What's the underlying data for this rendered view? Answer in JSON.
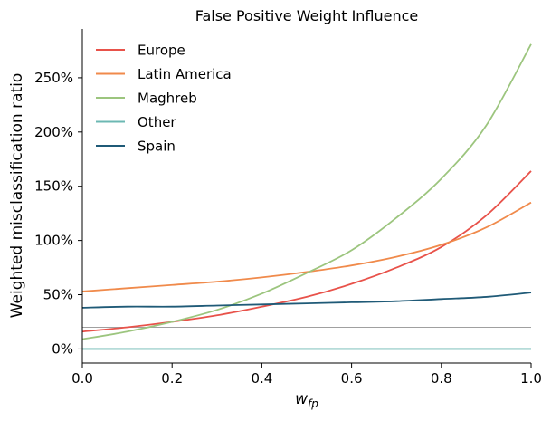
{
  "chart_data": {
    "type": "line",
    "title": "False Positive Weight Influence",
    "xlabel_main": "w",
    "xlabel_sub": "fp",
    "ylabel": "Weighted misclassification ratio",
    "xlim": [
      0,
      1
    ],
    "ylim": [
      -0.13,
      2.95
    ],
    "x_ticks": [
      0.0,
      0.2,
      0.4,
      0.6,
      0.8,
      1.0
    ],
    "x_tick_labels": [
      "0.0",
      "0.2",
      "0.4",
      "0.6",
      "0.8",
      "1.0"
    ],
    "y_ticks": [
      0,
      0.5,
      1.0,
      1.5,
      2.0,
      2.5
    ],
    "y_tick_labels": [
      "0%",
      "50%",
      "100%",
      "150%",
      "200%",
      "250%"
    ],
    "grid": false,
    "legend_position": "upper-left",
    "reference_line": {
      "y": 0.2,
      "color": "#a0a0a0"
    },
    "x": [
      0.0,
      0.1,
      0.2,
      0.3,
      0.4,
      0.5,
      0.6,
      0.7,
      0.8,
      0.9,
      1.0
    ],
    "series": [
      {
        "name": "Europe",
        "color": "#e8524a",
        "values": [
          0.16,
          0.2,
          0.25,
          0.31,
          0.39,
          0.48,
          0.6,
          0.75,
          0.94,
          1.23,
          1.64
        ]
      },
      {
        "name": "Latin America",
        "color": "#f08a4b",
        "values": [
          0.53,
          0.56,
          0.59,
          0.62,
          0.66,
          0.71,
          0.77,
          0.85,
          0.96,
          1.12,
          1.35
        ]
      },
      {
        "name": "Maghreb",
        "color": "#9cc57e",
        "values": [
          0.09,
          0.16,
          0.25,
          0.36,
          0.51,
          0.7,
          0.91,
          1.21,
          1.57,
          2.06,
          2.81
        ]
      },
      {
        "name": "Other",
        "color": "#6cb8b3",
        "values": [
          0.0,
          0.0,
          0.0,
          0.0,
          0.0,
          0.0,
          0.0,
          0.0,
          0.0,
          0.0,
          0.0
        ]
      },
      {
        "name": "Spain",
        "color": "#1f5a77",
        "values": [
          0.38,
          0.39,
          0.39,
          0.4,
          0.41,
          0.42,
          0.43,
          0.44,
          0.46,
          0.48,
          0.52
        ]
      }
    ]
  }
}
